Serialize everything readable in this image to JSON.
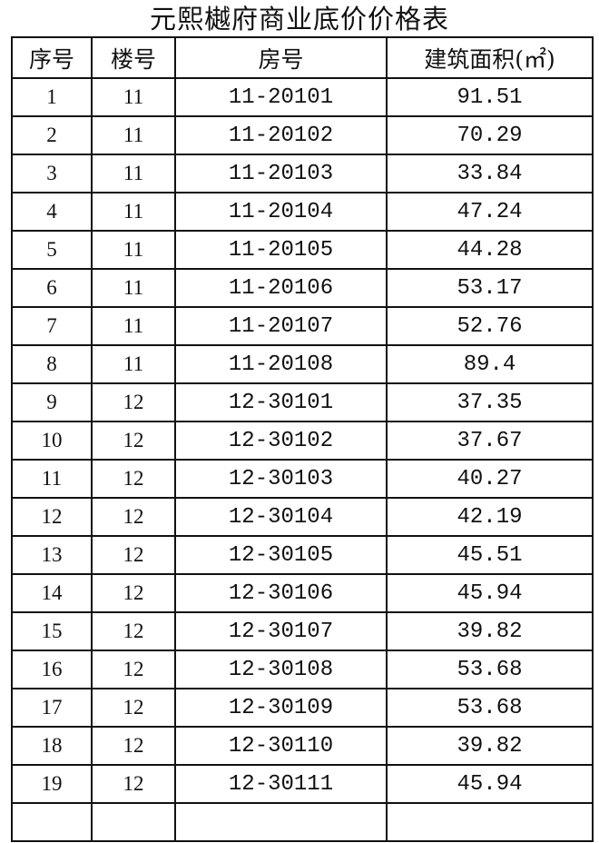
{
  "title": "元熙樾府商业底价价格表",
  "headers": [
    "序号",
    "楼号",
    "房号",
    "建筑面积(㎡)"
  ],
  "rows": [
    [
      "1",
      "11",
      "11-20101",
      "91.51"
    ],
    [
      "2",
      "11",
      "11-20102",
      "70.29"
    ],
    [
      "3",
      "11",
      "11-20103",
      "33.84"
    ],
    [
      "4",
      "11",
      "11-20104",
      "47.24"
    ],
    [
      "5",
      "11",
      "11-20105",
      "44.28"
    ],
    [
      "6",
      "11",
      "11-20106",
      "53.17"
    ],
    [
      "7",
      "11",
      "11-20107",
      "52.76"
    ],
    [
      "8",
      "11",
      "11-20108",
      "89.4"
    ],
    [
      "9",
      "12",
      "12-30101",
      "37.35"
    ],
    [
      "10",
      "12",
      "12-30102",
      "37.67"
    ],
    [
      "11",
      "12",
      "12-30103",
      "40.27"
    ],
    [
      "12",
      "12",
      "12-30104",
      "42.19"
    ],
    [
      "13",
      "12",
      "12-30105",
      "45.51"
    ],
    [
      "14",
      "12",
      "12-30106",
      "45.94"
    ],
    [
      "15",
      "12",
      "12-30107",
      "39.82"
    ],
    [
      "16",
      "12",
      "12-30108",
      "53.68"
    ],
    [
      "17",
      "12",
      "12-30109",
      "53.68"
    ],
    [
      "18",
      "12",
      "12-30110",
      "39.82"
    ],
    [
      "19",
      "12",
      "12-30111",
      "45.94"
    ]
  ]
}
